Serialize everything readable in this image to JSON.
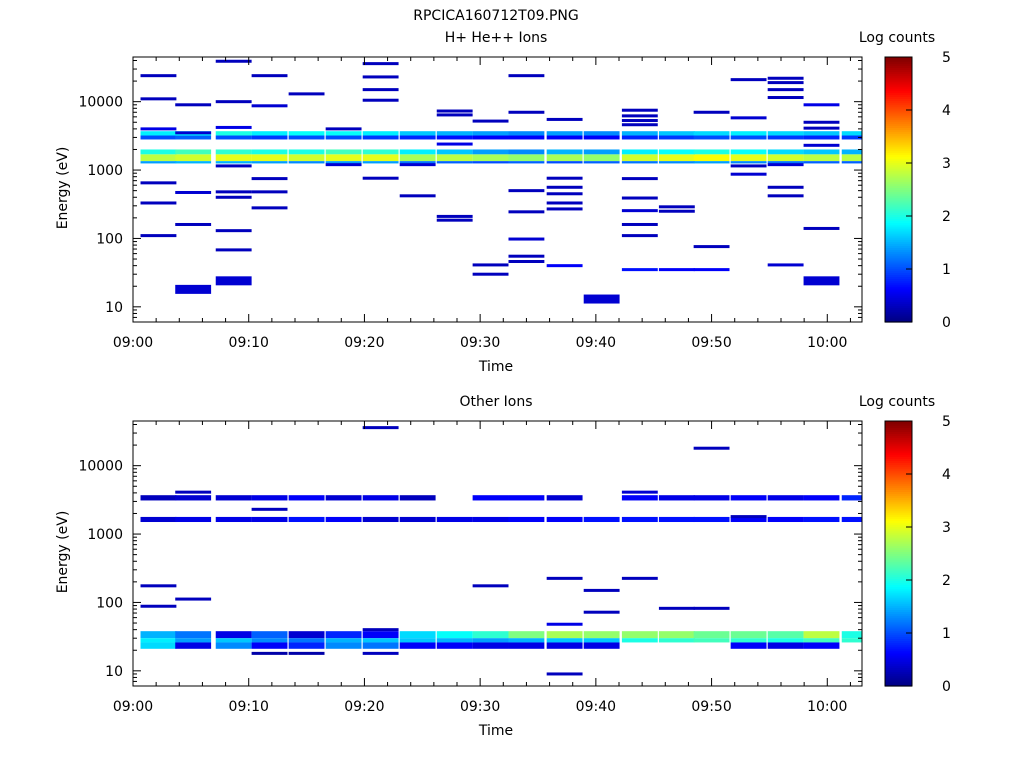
{
  "figure_title": "RPCICA160712T09.PNG",
  "colors": {
    "background": "#ffffff",
    "axis": "#000000"
  },
  "colorbar": {
    "label": "Log counts",
    "ticks": [
      "0",
      "1",
      "2",
      "3",
      "4",
      "5"
    ],
    "range": [
      0,
      5
    ],
    "colormap": "jet"
  },
  "chart_data": [
    {
      "type": "heatmap",
      "title": "H+ He++ Ions",
      "xlabel": "Time",
      "ylabel": "Energy (eV)",
      "yscale": "log",
      "ylim": [
        6,
        45000
      ],
      "xlim_minutes": [
        0,
        63
      ],
      "x_ticks": [
        "09:00",
        "09:10",
        "09:20",
        "09:30",
        "09:40",
        "09:50",
        "10:00"
      ],
      "y_ticks": [
        "10",
        "100",
        "1000",
        "10000"
      ],
      "time_bins_minutes": [
        2.2,
        5.2,
        8.7,
        11.8,
        15.0,
        18.2,
        21.4,
        24.6,
        27.8,
        30.9,
        34.0,
        37.3,
        40.5,
        43.8,
        47.0,
        50.0,
        53.2,
        56.4,
        59.5,
        62.8
      ],
      "bands": [
        {
          "e_lo": 1350,
          "e_hi": 1700,
          "values": [
            2.8,
            2.9,
            3.0,
            3.0,
            2.9,
            3.0,
            3.0,
            2.7,
            2.8,
            2.7,
            2.6,
            2.7,
            2.6,
            2.9,
            3.0,
            3.1,
            3.0,
            2.9,
            2.8,
            2.8
          ]
        },
        {
          "e_lo": 1700,
          "e_hi": 2000,
          "values": [
            2.0,
            2.2,
            2.1,
            2.0,
            2.0,
            2.2,
            2.1,
            1.8,
            1.6,
            1.4,
            1.3,
            1.5,
            1.4,
            1.8,
            1.9,
            2.0,
            1.9,
            1.7,
            1.6,
            1.5
          ]
        },
        {
          "e_lo": 1250,
          "e_hi": 1350,
          "values": [
            1.4,
            1.5,
            1.5,
            1.4,
            1.3,
            1.4,
            1.4,
            1.2,
            1.1,
            1.0,
            1.1,
            1.0,
            1.1,
            1.2,
            1.3,
            1.4,
            1.3,
            1.2,
            1.1,
            1.1
          ]
        },
        {
          "e_lo": 3200,
          "e_hi": 3700,
          "values": [
            1.8,
            1.9,
            2.0,
            1.8,
            1.9,
            1.9,
            1.8,
            1.6,
            1.5,
            1.4,
            1.3,
            1.4,
            1.3,
            1.5,
            1.6,
            1.7,
            1.8,
            1.7,
            1.6,
            1.7
          ]
        },
        {
          "e_lo": 2800,
          "e_hi": 3200,
          "values": [
            1.0,
            1.1,
            1.0,
            0.9,
            1.0,
            1.0,
            0.9,
            0.8,
            0.7,
            0.6,
            0.6,
            0.6,
            0.6,
            0.8,
            0.9,
            1.0,
            1.0,
            0.9,
            0.8,
            0.9
          ]
        }
      ],
      "points": [
        {
          "t": 2.2,
          "e": 24000,
          "v": 0.3
        },
        {
          "t": 2.2,
          "e": 11000,
          "v": 0.3
        },
        {
          "t": 2.2,
          "e": 4000,
          "v": 0.5
        },
        {
          "t": 2.2,
          "e": 650,
          "v": 0.3
        },
        {
          "t": 2.2,
          "e": 330,
          "v": 0.3
        },
        {
          "t": 2.2,
          "e": 110,
          "v": 0.3
        },
        {
          "t": 5.2,
          "e": 9000,
          "v": 0.3
        },
        {
          "t": 5.2,
          "e": 3500,
          "v": 0.4
        },
        {
          "t": 5.2,
          "e": 470,
          "v": 0.4
        },
        {
          "t": 5.2,
          "e": 160,
          "v": 0.3
        },
        {
          "t": 5.2,
          "e": 18,
          "v": 0.4
        },
        {
          "t": 8.7,
          "e": 39000,
          "v": 0.3
        },
        {
          "t": 8.7,
          "e": 10000,
          "v": 0.3
        },
        {
          "t": 8.7,
          "e": 4200,
          "v": 0.5
        },
        {
          "t": 8.7,
          "e": 1150,
          "v": 0.3
        },
        {
          "t": 8.7,
          "e": 480,
          "v": 0.3
        },
        {
          "t": 8.7,
          "e": 400,
          "v": 0.3
        },
        {
          "t": 8.7,
          "e": 130,
          "v": 0.3
        },
        {
          "t": 8.7,
          "e": 68,
          "v": 0.3
        },
        {
          "t": 8.7,
          "e": 24,
          "v": 0.4
        },
        {
          "t": 11.8,
          "e": 24000,
          "v": 0.3
        },
        {
          "t": 11.8,
          "e": 8700,
          "v": 0.4
        },
        {
          "t": 11.8,
          "e": 750,
          "v": 0.3
        },
        {
          "t": 11.8,
          "e": 480,
          "v": 0.3
        },
        {
          "t": 11.8,
          "e": 280,
          "v": 0.3
        },
        {
          "t": 15.0,
          "e": 13000,
          "v": 0.3
        },
        {
          "t": 18.2,
          "e": 1200,
          "v": 0.4
        },
        {
          "t": 18.2,
          "e": 4000,
          "v": 0.3
        },
        {
          "t": 21.4,
          "e": 36000,
          "v": 0.3
        },
        {
          "t": 21.4,
          "e": 23000,
          "v": 0.3
        },
        {
          "t": 21.4,
          "e": 15000,
          "v": 0.3
        },
        {
          "t": 21.4,
          "e": 10500,
          "v": 0.3
        },
        {
          "t": 21.4,
          "e": 760,
          "v": 0.3
        },
        {
          "t": 24.6,
          "e": 1200,
          "v": 0.4
        },
        {
          "t": 24.6,
          "e": 420,
          "v": 0.3
        },
        {
          "t": 27.8,
          "e": 7300,
          "v": 0.3
        },
        {
          "t": 27.8,
          "e": 6400,
          "v": 0.3
        },
        {
          "t": 27.8,
          "e": 2400,
          "v": 0.5
        },
        {
          "t": 27.8,
          "e": 210,
          "v": 0.3
        },
        {
          "t": 27.8,
          "e": 185,
          "v": 0.3
        },
        {
          "t": 30.9,
          "e": 5200,
          "v": 0.3
        },
        {
          "t": 30.9,
          "e": 41,
          "v": 0.3
        },
        {
          "t": 30.9,
          "e": 30,
          "v": 0.3
        },
        {
          "t": 34.0,
          "e": 24000,
          "v": 0.3
        },
        {
          "t": 34.0,
          "e": 7000,
          "v": 0.3
        },
        {
          "t": 34.0,
          "e": 500,
          "v": 0.3
        },
        {
          "t": 34.0,
          "e": 245,
          "v": 0.3
        },
        {
          "t": 34.0,
          "e": 98,
          "v": 0.4
        },
        {
          "t": 34.0,
          "e": 55,
          "v": 0.3
        },
        {
          "t": 34.0,
          "e": 46,
          "v": 0.3
        },
        {
          "t": 37.3,
          "e": 5500,
          "v": 0.3
        },
        {
          "t": 37.3,
          "e": 760,
          "v": 0.3
        },
        {
          "t": 37.3,
          "e": 560,
          "v": 0.3
        },
        {
          "t": 37.3,
          "e": 450,
          "v": 0.3
        },
        {
          "t": 37.3,
          "e": 330,
          "v": 0.3
        },
        {
          "t": 37.3,
          "e": 270,
          "v": 0.3
        },
        {
          "t": 37.3,
          "e": 40,
          "v": 0.6
        },
        {
          "t": 40.5,
          "e": 13,
          "v": 0.4
        },
        {
          "t": 43.8,
          "e": 7500,
          "v": 0.3
        },
        {
          "t": 43.8,
          "e": 6200,
          "v": 0.3
        },
        {
          "t": 43.8,
          "e": 5300,
          "v": 0.3
        },
        {
          "t": 43.8,
          "e": 4600,
          "v": 0.3
        },
        {
          "t": 43.8,
          "e": 750,
          "v": 0.3
        },
        {
          "t": 43.8,
          "e": 390,
          "v": 0.3
        },
        {
          "t": 43.8,
          "e": 255,
          "v": 0.4
        },
        {
          "t": 43.8,
          "e": 160,
          "v": 0.3
        },
        {
          "t": 43.8,
          "e": 110,
          "v": 0.3
        },
        {
          "t": 43.8,
          "e": 35,
          "v": 0.7
        },
        {
          "t": 47.0,
          "e": 290,
          "v": 0.3
        },
        {
          "t": 47.0,
          "e": 250,
          "v": 0.3
        },
        {
          "t": 47.0,
          "e": 35,
          "v": 0.6
        },
        {
          "t": 50.0,
          "e": 7000,
          "v": 0.3
        },
        {
          "t": 50.0,
          "e": 76,
          "v": 0.3
        },
        {
          "t": 50.0,
          "e": 35,
          "v": 0.6
        },
        {
          "t": 53.2,
          "e": 21000,
          "v": 0.3
        },
        {
          "t": 53.2,
          "e": 5800,
          "v": 0.4
        },
        {
          "t": 53.2,
          "e": 1150,
          "v": 0.3
        },
        {
          "t": 53.2,
          "e": 870,
          "v": 0.4
        },
        {
          "t": 56.4,
          "e": 22000,
          "v": 0.3
        },
        {
          "t": 56.4,
          "e": 19000,
          "v": 0.3
        },
        {
          "t": 56.4,
          "e": 15000,
          "v": 0.3
        },
        {
          "t": 56.4,
          "e": 11500,
          "v": 0.3
        },
        {
          "t": 56.4,
          "e": 1200,
          "v": 0.4
        },
        {
          "t": 56.4,
          "e": 560,
          "v": 0.3
        },
        {
          "t": 56.4,
          "e": 420,
          "v": 0.3
        },
        {
          "t": 56.4,
          "e": 41,
          "v": 0.4
        },
        {
          "t": 59.5,
          "e": 9000,
          "v": 0.5
        },
        {
          "t": 59.5,
          "e": 5000,
          "v": 0.3
        },
        {
          "t": 59.5,
          "e": 4100,
          "v": 0.3
        },
        {
          "t": 59.5,
          "e": 2300,
          "v": 0.4
        },
        {
          "t": 59.5,
          "e": 140,
          "v": 0.3
        },
        {
          "t": 59.5,
          "e": 24,
          "v": 0.4
        }
      ]
    },
    {
      "type": "heatmap",
      "title": "Other Ions",
      "xlabel": "Time",
      "ylabel": "Energy (eV)",
      "yscale": "log",
      "ylim": [
        6,
        45000
      ],
      "xlim_minutes": [
        0,
        63
      ],
      "x_ticks": [
        "09:00",
        "09:10",
        "09:20",
        "09:30",
        "09:40",
        "09:50",
        "10:00"
      ],
      "y_ticks": [
        "10",
        "100",
        "1000",
        "10000"
      ],
      "time_bins_minutes": [
        2.2,
        5.2,
        8.7,
        11.8,
        15.0,
        18.2,
        21.4,
        24.6,
        27.8,
        30.9,
        34.0,
        37.3,
        40.5,
        43.8,
        47.0,
        50.0,
        53.2,
        56.4,
        59.5,
        62.8
      ],
      "bands": [
        {
          "e_lo": 1500,
          "e_hi": 1780,
          "values": [
            0.4,
            0.5,
            0.5,
            0.5,
            0.7,
            0.6,
            0.4,
            0.4,
            0.5,
            0.5,
            0.6,
            0.6,
            0.7,
            0.7,
            0.7,
            0.7,
            0.6,
            0.6,
            0.7,
            0.7
          ]
        },
        {
          "e_lo": 3100,
          "e_hi": 3700,
          "values": [
            0.3,
            0.4,
            0.4,
            0.5,
            0.6,
            0.4,
            0.5,
            0.3,
            null,
            0.6,
            0.6,
            0.4,
            null,
            0.6,
            0.5,
            0.5,
            0.6,
            0.5,
            0.6,
            0.8
          ]
        },
        {
          "e_lo": 30,
          "e_hi": 38,
          "values": [
            1.5,
            1.2,
            0.5,
            1.1,
            0.4,
            0.8,
            0.6,
            1.7,
            1.9,
            2.1,
            2.5,
            2.7,
            2.6,
            2.6,
            2.6,
            2.4,
            2.4,
            2.3,
            2.8,
            2.0
          ]
        },
        {
          "e_lo": 26,
          "e_hi": 30,
          "values": [
            1.8,
            1.4,
            1.6,
            1.3,
            1.2,
            1.5,
            1.6,
            1.6,
            1.5,
            1.4,
            1.5,
            1.6,
            1.6,
            2.0,
            2.1,
            2.2,
            2.1,
            2.0,
            2.2,
            2.1
          ]
        },
        {
          "e_lo": 21,
          "e_hi": 26,
          "values": [
            1.7,
            0.5,
            1.3,
            0.6,
            0.8,
            1.3,
            1.2,
            0.6,
            0.6,
            0.5,
            0.5,
            0.5,
            0.5,
            null,
            null,
            null,
            0.6,
            0.5,
            0.6,
            null
          ]
        }
      ],
      "points": [
        {
          "t": 2.2,
          "e": 175,
          "v": 0.3
        },
        {
          "t": 2.2,
          "e": 88,
          "v": 0.3
        },
        {
          "t": 5.2,
          "e": 112,
          "v": 0.3
        },
        {
          "t": 5.2,
          "e": 4100,
          "v": 0.3
        },
        {
          "t": 11.8,
          "e": 18,
          "v": 0.2
        },
        {
          "t": 11.8,
          "e": 2300,
          "v": 0.3
        },
        {
          "t": 15.0,
          "e": 18,
          "v": 0.2
        },
        {
          "t": 21.4,
          "e": 36000,
          "v": 0.3
        },
        {
          "t": 21.4,
          "e": 18,
          "v": 0.3
        },
        {
          "t": 21.4,
          "e": 40,
          "v": 0.3
        },
        {
          "t": 30.9,
          "e": 175,
          "v": 0.3
        },
        {
          "t": 37.3,
          "e": 225,
          "v": 0.3
        },
        {
          "t": 37.3,
          "e": 9,
          "v": 0.3
        },
        {
          "t": 37.3,
          "e": 48,
          "v": 0.5
        },
        {
          "t": 40.5,
          "e": 150,
          "v": 0.3
        },
        {
          "t": 40.5,
          "e": 72,
          "v": 0.3
        },
        {
          "t": 43.8,
          "e": 225,
          "v": 0.3
        },
        {
          "t": 43.8,
          "e": 4100,
          "v": 0.4
        },
        {
          "t": 47.0,
          "e": 82,
          "v": 0.3
        },
        {
          "t": 50.0,
          "e": 18000,
          "v": 0.3
        },
        {
          "t": 50.0,
          "e": 82,
          "v": 0.3
        },
        {
          "t": 53.2,
          "e": 1800,
          "v": 0.3
        }
      ]
    }
  ]
}
